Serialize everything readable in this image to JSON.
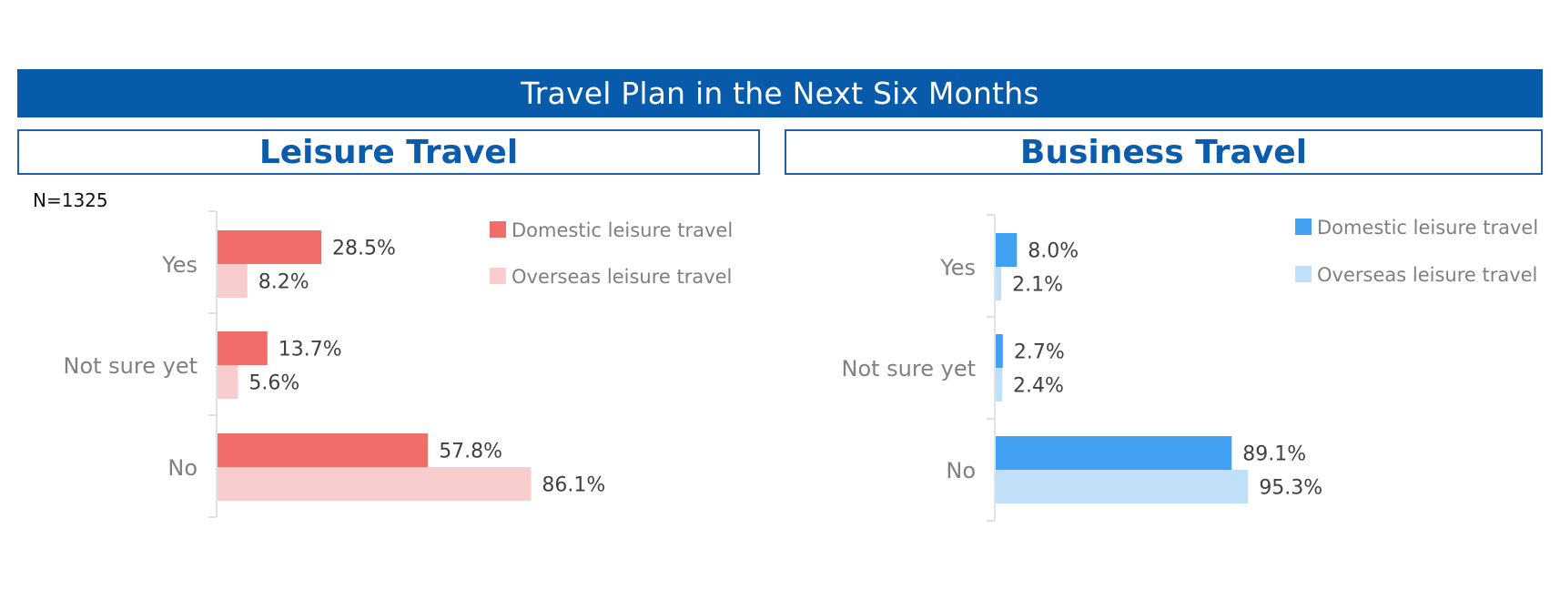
{
  "title": "Travel Plan in the Next Six Months",
  "sample_size": "N=1325",
  "colors": {
    "title_bar": "#075BAA",
    "panel_title_text": "#0B5CAD",
    "leisure_domestic": "#F06D69",
    "leisure_overseas": "#F9CDCD",
    "business_domestic": "#42A1F2",
    "business_overseas": "#C0E0FA"
  },
  "chart_data": [
    {
      "type": "bar",
      "orientation": "horizontal",
      "title": "Leisure Travel",
      "categories": [
        "Yes",
        "Not sure yet",
        "No"
      ],
      "series": [
        {
          "name": "Domestic leisure travel",
          "values": [
            28.5,
            13.7,
            57.8
          ],
          "labels": [
            "28.5%",
            "13.7%",
            "57.8%"
          ]
        },
        {
          "name": "Overseas leisure travel",
          "values": [
            8.2,
            5.6,
            86.1
          ],
          "labels": [
            "8.2%",
            "5.6%",
            "86.1%"
          ]
        }
      ],
      "xlim": [
        0,
        100
      ],
      "legend": "top-right",
      "grid": false
    },
    {
      "type": "bar",
      "orientation": "horizontal",
      "title": "Business Travel",
      "categories": [
        "Yes",
        "Not sure yet",
        "No"
      ],
      "series": [
        {
          "name": "Domestic leisure travel",
          "values": [
            8.0,
            2.7,
            89.1
          ],
          "labels": [
            "8.0%",
            "2.7%",
            "89.1%"
          ]
        },
        {
          "name": "Overseas leisure travel",
          "values": [
            2.1,
            2.4,
            95.3
          ],
          "labels": [
            "2.1%",
            "2.4%",
            "95.3%"
          ]
        }
      ],
      "xlim": [
        0,
        100
      ],
      "legend": "top-right",
      "grid": false
    }
  ]
}
